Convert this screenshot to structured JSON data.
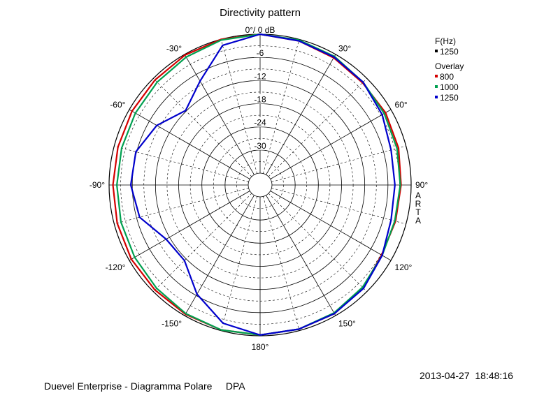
{
  "chart_data": {
    "type": "polar",
    "title": "Directivity pattern",
    "radial_unit": "dB",
    "radial_range": [
      -36,
      0
    ],
    "radial_ticks": [
      {
        "value": 0,
        "label": "0°/ 0 dB"
      },
      {
        "value": -6,
        "label": "-6"
      },
      {
        "value": -12,
        "label": "-12"
      },
      {
        "value": -18,
        "label": "-18"
      },
      {
        "value": -24,
        "label": "-24"
      },
      {
        "value": -30,
        "label": "-30"
      }
    ],
    "angle_ticks": [
      {
        "angle": 30,
        "label": "30°"
      },
      {
        "angle": 60,
        "label": "60°"
      },
      {
        "angle": 90,
        "label": "90°"
      },
      {
        "angle": 120,
        "label": "120°"
      },
      {
        "angle": 150,
        "label": "150°"
      },
      {
        "angle": 180,
        "label": "180°"
      },
      {
        "angle": -150,
        "label": "-150°"
      },
      {
        "angle": -120,
        "label": "-120°"
      },
      {
        "angle": -90,
        "label": "-90°"
      },
      {
        "angle": -60,
        "label": "-60°"
      },
      {
        "angle": -30,
        "label": "-30°"
      }
    ],
    "side_label": "ARTA",
    "legend": {
      "frequency_header": "F(Hz)",
      "frequency_entry": {
        "label": "1250",
        "color": "#000000"
      },
      "overlay_header": "Overlay",
      "entries": [
        {
          "label": "800",
          "color": "#d40000"
        },
        {
          "label": "1000",
          "color": "#00a050"
        },
        {
          "label": "1250",
          "color": "#0000cc"
        }
      ]
    },
    "series": [
      {
        "name": "800",
        "color": "#d40000",
        "angles": [
          0,
          15,
          30,
          45,
          60,
          75,
          90,
          105,
          120,
          135,
          150,
          165,
          180,
          195,
          210,
          225,
          240,
          255,
          270,
          285,
          300,
          315,
          330,
          345,
          360
        ],
        "values": [
          0,
          -0.4,
          -1.0,
          -1.6,
          -1.6,
          -2.0,
          -2.6,
          -2.8,
          -2.8,
          -1.4,
          -0.6,
          -0.4,
          -0.2,
          -0.2,
          -0.4,
          -0.6,
          -0.6,
          -0.8,
          -1.0,
          -1.0,
          -0.8,
          -0.6,
          -0.2,
          0,
          0
        ]
      },
      {
        "name": "1000",
        "color": "#00a050",
        "angles": [
          0,
          15,
          30,
          45,
          60,
          75,
          90,
          105,
          120,
          135,
          150,
          165,
          180,
          195,
          210,
          225,
          240,
          255,
          270,
          285,
          300,
          315,
          330,
          345,
          360
        ],
        "values": [
          0,
          -0.2,
          -0.6,
          -1.4,
          -2.0,
          -2.4,
          -2.8,
          -3.0,
          -2.6,
          -1.6,
          -0.8,
          -0.4,
          -0.2,
          -0.2,
          -0.6,
          -1.2,
          -1.6,
          -1.8,
          -2.0,
          -2.0,
          -1.8,
          -1.4,
          -0.8,
          -0.2,
          0
        ]
      },
      {
        "name": "1250",
        "color": "#0000cc",
        "angles": [
          0,
          15,
          30,
          45,
          60,
          75,
          90,
          105,
          120,
          135,
          150,
          165,
          180,
          195,
          210,
          225,
          240,
          255,
          270,
          285,
          300,
          315,
          330,
          345,
          360
        ],
        "values": [
          0,
          -0.4,
          -0.8,
          -1.4,
          -2.6,
          -4.0,
          -4.2,
          -4.0,
          -2.6,
          -1.2,
          -0.6,
          -0.4,
          -0.2,
          -2.0,
          -6.4,
          -11.4,
          -11.0,
          -6.8,
          -5.6,
          -5.8,
          -8.2,
          -11.8,
          -8.0,
          -1.6,
          0
        ]
      }
    ]
  },
  "footer": {
    "left_text": "Duevel Enterprise - Diagramma Polare     DPA",
    "timestamp": "2013-04-27  18:48:16"
  }
}
